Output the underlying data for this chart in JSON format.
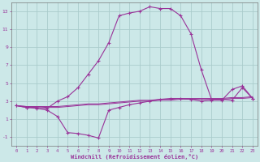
{
  "xlabel": "Windchill (Refroidissement éolien,°C)",
  "background_color": "#cce8e8",
  "grid_color": "#aacccc",
  "line_color": "#993399",
  "hours": [
    0,
    1,
    2,
    3,
    4,
    5,
    6,
    7,
    8,
    9,
    10,
    11,
    12,
    13,
    14,
    15,
    16,
    17,
    18,
    19,
    20,
    21,
    22,
    23
  ],
  "temp": [
    2.5,
    2.3,
    2.3,
    2.2,
    3.0,
    3.5,
    4.5,
    6.0,
    7.5,
    9.5,
    12.5,
    12.8,
    13.0,
    13.5,
    13.3,
    13.3,
    12.5,
    10.5,
    6.5,
    3.2,
    3.2,
    3.1,
    4.5,
    3.3
  ],
  "windchill": [
    2.5,
    2.3,
    2.2,
    2.0,
    1.3,
    -0.5,
    -0.6,
    -0.8,
    -1.1,
    2.0,
    2.3,
    2.6,
    2.8,
    3.0,
    3.2,
    3.3,
    3.3,
    3.2,
    3.0,
    3.1,
    3.1,
    4.3,
    4.7,
    3.3
  ],
  "line1": [
    2.5,
    2.4,
    2.4,
    2.3,
    2.3,
    2.4,
    2.5,
    2.6,
    2.6,
    2.7,
    2.8,
    2.9,
    3.0,
    3.0,
    3.1,
    3.1,
    3.2,
    3.2,
    3.2,
    3.2,
    3.2,
    3.3,
    3.3,
    3.4
  ],
  "line2": [
    2.5,
    2.4,
    2.4,
    2.4,
    2.4,
    2.5,
    2.6,
    2.7,
    2.7,
    2.8,
    2.9,
    3.0,
    3.1,
    3.1,
    3.2,
    3.2,
    3.3,
    3.3,
    3.3,
    3.3,
    3.3,
    3.4,
    3.4,
    3.5
  ],
  "ylim": [
    -2,
    14
  ],
  "yticks": [
    -1,
    1,
    3,
    5,
    7,
    9,
    11,
    13
  ],
  "xlim_min": -0.5,
  "xlim_max": 23.5
}
